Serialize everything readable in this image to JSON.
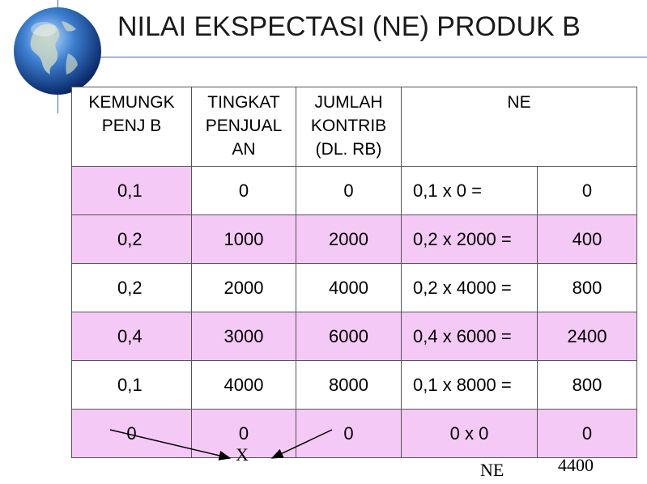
{
  "slide": {
    "title": "NILAI EKSPECTASI (NE) PRODUK B"
  },
  "table": {
    "headers": {
      "col1": [
        "KEMUNGK",
        "PENJ B"
      ],
      "col2": [
        "TINGKAT",
        "PENJUAL",
        "AN"
      ],
      "col3": [
        "JUMLAH",
        "KONTRIB",
        "(DL. RB)"
      ],
      "col4": [
        "NE"
      ]
    },
    "rows": [
      {
        "prob": "0,1",
        "level": "0",
        "contrib": "0",
        "calc": "0,1 x 0  =",
        "ne": "0"
      },
      {
        "prob": "0,2",
        "level": "1000",
        "contrib": "2000",
        "calc": "0,2 x 2000 =",
        "ne": "400"
      },
      {
        "prob": "0,2",
        "level": "2000",
        "contrib": "4000",
        "calc": "0,2 x 4000 =",
        "ne": "800"
      },
      {
        "prob": "0,4",
        "level": "3000",
        "contrib": "6000",
        "calc": "0,4 x 6000 =",
        "ne": "2400"
      },
      {
        "prob": "0,1",
        "level": "4000",
        "contrib": "8000",
        "calc": "0,1 x 8000 =",
        "ne": "800"
      },
      {
        "prob": "0",
        "level": "0",
        "contrib": "0",
        "calc": "0 x 0",
        "ne": "0"
      }
    ]
  },
  "annotations": {
    "x_label": "X",
    "ne_label": "NE",
    "total": "4400"
  },
  "colors": {
    "row_pink": "#f5c9f5",
    "title_rule": "#3a6ab0"
  },
  "icons": [
    "globe-icon"
  ]
}
